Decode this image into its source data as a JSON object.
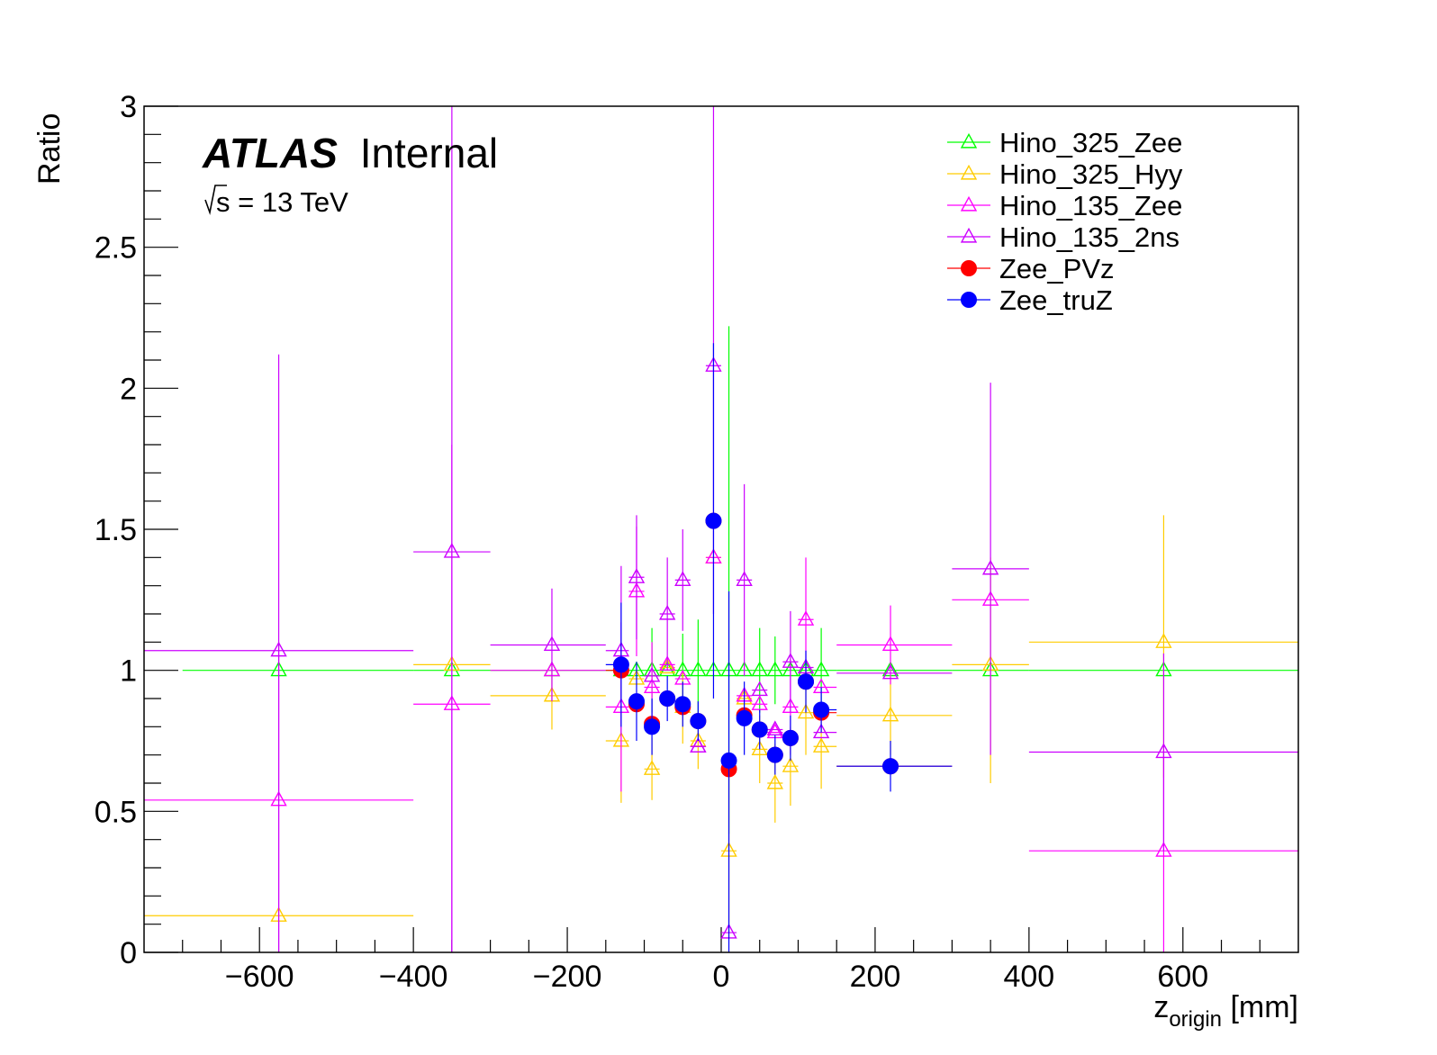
{
  "chart_data": {
    "type": "scatter",
    "title": "",
    "annotations": {
      "experiment": "ATLAS",
      "status": "Internal",
      "energy_sqrt": "s",
      "energy_value": " = 13 TeV"
    },
    "xlabel": {
      "main": "z",
      "sub": "origin",
      "unit": " [mm]"
    },
    "ylabel": "Ratio",
    "xlim": [
      -750,
      750
    ],
    "ylim": [
      0,
      3
    ],
    "xticks": [
      -600,
      -400,
      -200,
      0,
      200,
      400,
      600
    ],
    "xtick_labels": [
      "−600",
      "−400",
      "−200",
      "0",
      "200",
      "400",
      "600"
    ],
    "yticks": [
      0,
      0.5,
      1,
      1.5,
      2,
      2.5,
      3
    ],
    "ytick_labels": [
      "0",
      "0.5",
      "1",
      "1.5",
      "2",
      "2.5",
      "3"
    ],
    "grid": false,
    "legend_position": "top-right",
    "series": [
      {
        "name": "Hino_325_Zee",
        "color": "#00ff00",
        "marker": "open-triangle",
        "points": [
          {
            "x": -575,
            "y": 1.0,
            "xlo": -700,
            "xhi": -400
          },
          {
            "x": -350,
            "y": 1.0,
            "xlo": -400,
            "xhi": -300
          },
          {
            "x": -220,
            "y": 1.0,
            "xlo": -300,
            "xhi": -150
          },
          {
            "x": -130,
            "y": 1.0,
            "xlo": -150,
            "xhi": -120
          },
          {
            "x": -110,
            "y": 1.0,
            "xlo": -120,
            "xhi": -100
          },
          {
            "x": -90,
            "y": 1.0,
            "xlo": -100,
            "xhi": -80,
            "ylo": 0.85,
            "yhi": 1.15
          },
          {
            "x": -70,
            "y": 1.0,
            "xlo": -80,
            "xhi": -60
          },
          {
            "x": -50,
            "y": 1.0,
            "xlo": -60,
            "xhi": -40,
            "ylo": 0.87,
            "yhi": 1.13
          },
          {
            "x": -30,
            "y": 1.0,
            "xlo": -40,
            "xhi": -20,
            "ylo": 0.82,
            "yhi": 1.18
          },
          {
            "x": -10,
            "y": 1.0,
            "xlo": -20,
            "xhi": 0
          },
          {
            "x": 10,
            "y": 1.0,
            "xlo": 0,
            "xhi": 20,
            "ylo": 0.42,
            "yhi": 2.22
          },
          {
            "x": 30,
            "y": 1.0,
            "xlo": 20,
            "xhi": 40
          },
          {
            "x": 50,
            "y": 1.0,
            "xlo": 40,
            "xhi": 60,
            "ylo": 0.85,
            "yhi": 1.15
          },
          {
            "x": 70,
            "y": 1.0,
            "xlo": 60,
            "xhi": 80,
            "ylo": 0.88,
            "yhi": 1.12
          },
          {
            "x": 90,
            "y": 1.0,
            "xlo": 80,
            "xhi": 100
          },
          {
            "x": 110,
            "y": 1.0,
            "xlo": 100,
            "xhi": 120
          },
          {
            "x": 130,
            "y": 1.0,
            "xlo": 120,
            "xhi": 150,
            "ylo": 0.85,
            "yhi": 1.15
          },
          {
            "x": 220,
            "y": 1.0,
            "xlo": 150,
            "xhi": 300
          },
          {
            "x": 350,
            "y": 1.0,
            "xlo": 300,
            "xhi": 400
          },
          {
            "x": 575,
            "y": 1.0,
            "xlo": 400,
            "xhi": 750
          }
        ]
      },
      {
        "name": "Hino_325_Hyy",
        "color": "#ffcc00",
        "marker": "open-triangle",
        "points": [
          {
            "x": -575,
            "y": 0.13,
            "xlo": -750,
            "xhi": -400
          },
          {
            "x": -350,
            "y": 1.02,
            "xlo": -400,
            "xhi": -300
          },
          {
            "x": -220,
            "y": 0.91,
            "xlo": -300,
            "xhi": -150,
            "ylo": 0.79,
            "yhi": 1.03
          },
          {
            "x": -130,
            "y": 0.75,
            "xlo": -150,
            "xhi": -120,
            "ylo": 0.53,
            "yhi": 0.97
          },
          {
            "x": -110,
            "y": 0.97,
            "xlo": -120,
            "xhi": -100
          },
          {
            "x": -90,
            "y": 0.65,
            "xlo": -100,
            "xhi": -80,
            "ylo": 0.54,
            "yhi": 0.76
          },
          {
            "x": -70,
            "y": 1.01,
            "xlo": -80,
            "xhi": -60
          },
          {
            "x": -50,
            "y": 0.87,
            "xlo": -60,
            "xhi": -40,
            "ylo": 0.74,
            "yhi": 1.0
          },
          {
            "x": -30,
            "y": 0.75,
            "xlo": -40,
            "xhi": -20,
            "ylo": 0.65,
            "yhi": 0.85
          },
          {
            "x": -10,
            "y": 1.4,
            "xlo": -20,
            "xhi": 0
          },
          {
            "x": 10,
            "y": 0.36,
            "xlo": 0,
            "xhi": 20,
            "ylo": 0.05,
            "yhi": 0.7
          },
          {
            "x": 30,
            "y": 0.9,
            "xlo": 20,
            "xhi": 40
          },
          {
            "x": 50,
            "y": 0.72,
            "xlo": 40,
            "xhi": 60,
            "ylo": 0.6,
            "yhi": 0.84
          },
          {
            "x": 70,
            "y": 0.6,
            "xlo": 60,
            "xhi": 80,
            "ylo": 0.46,
            "yhi": 0.74
          },
          {
            "x": 90,
            "y": 0.66,
            "xlo": 80,
            "xhi": 100,
            "ylo": 0.52,
            "yhi": 0.8
          },
          {
            "x": 110,
            "y": 0.85,
            "xlo": 100,
            "xhi": 120,
            "ylo": 0.7,
            "yhi": 1.0
          },
          {
            "x": 130,
            "y": 0.73,
            "xlo": 120,
            "xhi": 150,
            "ylo": 0.58,
            "yhi": 0.88
          },
          {
            "x": 220,
            "y": 0.84,
            "xlo": 150,
            "xhi": 300,
            "ylo": 0.7,
            "yhi": 0.98
          },
          {
            "x": 350,
            "y": 1.02,
            "xlo": 300,
            "xhi": 400,
            "ylo": 0.6,
            "yhi": 1.4
          },
          {
            "x": 575,
            "y": 1.1,
            "xlo": 400,
            "xhi": 750,
            "ylo": 0.62,
            "yhi": 1.55
          }
        ]
      },
      {
        "name": "Hino_135_Zee",
        "color": "#ff00ff",
        "marker": "open-triangle",
        "points": [
          {
            "x": -575,
            "y": 0.54,
            "xlo": -750,
            "xhi": -400,
            "ylo": 0.0,
            "yhi": 1.1
          },
          {
            "x": -350,
            "y": 0.88,
            "xlo": -400,
            "xhi": -300,
            "ylo": 0.0,
            "yhi": 1.8
          },
          {
            "x": -220,
            "y": 1.0,
            "xlo": -300,
            "xhi": -150
          },
          {
            "x": -130,
            "y": 0.87,
            "xlo": -150,
            "xhi": -120,
            "ylo": 0.57,
            "yhi": 1.17
          },
          {
            "x": -110,
            "y": 1.28,
            "xlo": -120,
            "xhi": -100,
            "ylo": 1.05,
            "yhi": 1.51
          },
          {
            "x": -90,
            "y": 0.94,
            "xlo": -100,
            "xhi": -80,
            "ylo": 0.78,
            "yhi": 1.1
          },
          {
            "x": -70,
            "y": 1.02,
            "xlo": -80,
            "xhi": -60
          },
          {
            "x": -50,
            "y": 0.97,
            "xlo": -60,
            "xhi": -40
          },
          {
            "x": -30,
            "y": 0.73,
            "xlo": -40,
            "xhi": -20
          },
          {
            "x": -10,
            "y": 1.4,
            "xlo": -20,
            "xhi": 0
          },
          {
            "x": 30,
            "y": 0.91,
            "xlo": 20,
            "xhi": 40
          },
          {
            "x": 50,
            "y": 0.88,
            "xlo": 40,
            "xhi": 60
          },
          {
            "x": 70,
            "y": 0.78,
            "xlo": 60,
            "xhi": 80
          },
          {
            "x": 90,
            "y": 0.87,
            "xlo": 80,
            "xhi": 100,
            "ylo": 0.7,
            "yhi": 1.04
          },
          {
            "x": 110,
            "y": 1.18,
            "xlo": 100,
            "xhi": 120,
            "ylo": 0.96,
            "yhi": 1.4
          },
          {
            "x": 130,
            "y": 0.94,
            "xlo": 120,
            "xhi": 150
          },
          {
            "x": 220,
            "y": 1.09,
            "xlo": 150,
            "xhi": 300,
            "ylo": 0.95,
            "yhi": 1.23
          },
          {
            "x": 350,
            "y": 1.25,
            "xlo": 300,
            "xhi": 400
          },
          {
            "x": 575,
            "y": 0.36,
            "xlo": 400,
            "xhi": 750,
            "ylo": 0.0,
            "yhi": 0.72
          }
        ]
      },
      {
        "name": "Hino_135_2ns",
        "color": "#cc00ff",
        "marker": "open-triangle",
        "points": [
          {
            "x": -575,
            "y": 1.07,
            "xlo": -750,
            "xhi": -400,
            "ylo": 0.0,
            "yhi": 2.12
          },
          {
            "x": -350,
            "y": 1.42,
            "xlo": -400,
            "xhi": -300,
            "ylo": 0.0,
            "yhi": 3.0
          },
          {
            "x": -220,
            "y": 1.09,
            "xlo": -300,
            "xhi": -150,
            "ylo": 0.89,
            "yhi": 1.29
          },
          {
            "x": -130,
            "y": 1.07,
            "xlo": -150,
            "xhi": -120,
            "ylo": 0.77,
            "yhi": 1.37
          },
          {
            "x": -110,
            "y": 1.33,
            "xlo": -120,
            "xhi": -100,
            "ylo": 1.11,
            "yhi": 1.55
          },
          {
            "x": -90,
            "y": 0.98,
            "xlo": -100,
            "xhi": -80
          },
          {
            "x": -70,
            "y": 1.2,
            "xlo": -80,
            "xhi": -60,
            "ylo": 1.0,
            "yhi": 1.4
          },
          {
            "x": -50,
            "y": 1.32,
            "xlo": -60,
            "xhi": -40,
            "ylo": 1.14,
            "yhi": 1.5
          },
          {
            "x": -30,
            "y": 0.73,
            "xlo": -40,
            "xhi": -20
          },
          {
            "x": -10,
            "y": 2.08,
            "xlo": -20,
            "xhi": 0,
            "ylo": 1.2,
            "yhi": 3.0
          },
          {
            "x": 10,
            "y": 0.07,
            "xlo": 0,
            "xhi": 20
          },
          {
            "x": 30,
            "y": 1.32,
            "xlo": 20,
            "xhi": 40,
            "ylo": 0.98,
            "yhi": 1.66
          },
          {
            "x": 50,
            "y": 0.93,
            "xlo": 40,
            "xhi": 60
          },
          {
            "x": 70,
            "y": 0.79,
            "xlo": 60,
            "xhi": 80
          },
          {
            "x": 90,
            "y": 1.03,
            "xlo": 80,
            "xhi": 100,
            "ylo": 0.85,
            "yhi": 1.21
          },
          {
            "x": 110,
            "y": 1.01,
            "xlo": 100,
            "xhi": 120
          },
          {
            "x": 130,
            "y": 0.78,
            "xlo": 120,
            "xhi": 150
          },
          {
            "x": 220,
            "y": 0.99,
            "xlo": 150,
            "xhi": 300
          },
          {
            "x": 350,
            "y": 1.36,
            "xlo": 300,
            "xhi": 400,
            "ylo": 0.7,
            "yhi": 2.02
          },
          {
            "x": 575,
            "y": 0.71,
            "xlo": 400,
            "xhi": 750,
            "ylo": 0.36,
            "yhi": 1.06
          }
        ]
      },
      {
        "name": "Zee_PVz",
        "color": "#ff0000",
        "marker": "filled-circle",
        "points": [
          {
            "x": -130,
            "y": 1.0,
            "xlo": -150,
            "xhi": -120
          },
          {
            "x": -110,
            "y": 0.88,
            "xlo": -120,
            "xhi": -100
          },
          {
            "x": -90,
            "y": 0.81,
            "xlo": -100,
            "xhi": -80
          },
          {
            "x": -70,
            "y": 0.9,
            "xlo": -80,
            "xhi": -60
          },
          {
            "x": -50,
            "y": 0.87,
            "xlo": -60,
            "xhi": -40
          },
          {
            "x": -30,
            "y": 0.82,
            "xlo": -40,
            "xhi": -20
          },
          {
            "x": -10,
            "y": 1.53,
            "xlo": -20,
            "xhi": 0
          },
          {
            "x": 10,
            "y": 0.65,
            "xlo": 0,
            "xhi": 20
          },
          {
            "x": 30,
            "y": 0.84,
            "xlo": 20,
            "xhi": 40
          },
          {
            "x": 50,
            "y": 0.79,
            "xlo": 40,
            "xhi": 60
          },
          {
            "x": 70,
            "y": 0.7,
            "xlo": 60,
            "xhi": 80
          },
          {
            "x": 90,
            "y": 0.76,
            "xlo": 80,
            "xhi": 100
          },
          {
            "x": 110,
            "y": 0.96,
            "xlo": 100,
            "xhi": 120
          },
          {
            "x": 130,
            "y": 0.85,
            "xlo": 120,
            "xhi": 150
          },
          {
            "x": 220,
            "y": 0.66,
            "xlo": 150,
            "xhi": 300
          }
        ]
      },
      {
        "name": "Zee_truZ",
        "color": "#0000ff",
        "marker": "filled-circle",
        "points": [
          {
            "x": -130,
            "y": 1.02,
            "xlo": -150,
            "xhi": -120,
            "ylo": 0.8,
            "yhi": 1.24
          },
          {
            "x": -110,
            "y": 0.89,
            "xlo": -120,
            "xhi": -100,
            "ylo": 0.75,
            "yhi": 1.03
          },
          {
            "x": -90,
            "y": 0.8,
            "xlo": -100,
            "xhi": -80,
            "ylo": 0.7,
            "yhi": 0.9
          },
          {
            "x": -70,
            "y": 0.9,
            "xlo": -80,
            "xhi": -60,
            "ylo": 0.82,
            "yhi": 0.98
          },
          {
            "x": -50,
            "y": 0.88,
            "xlo": -60,
            "xhi": -40,
            "ylo": 0.8,
            "yhi": 0.96
          },
          {
            "x": -30,
            "y": 0.82,
            "xlo": -40,
            "xhi": -20,
            "ylo": 0.75,
            "yhi": 0.89
          },
          {
            "x": -10,
            "y": 1.53,
            "xlo": -20,
            "xhi": 0,
            "ylo": 0.9,
            "yhi": 2.16
          },
          {
            "x": 10,
            "y": 0.68,
            "xlo": 0,
            "xhi": 20,
            "ylo": 0.0,
            "yhi": 1.28
          },
          {
            "x": 30,
            "y": 0.83,
            "xlo": 20,
            "xhi": 40,
            "ylo": 0.7,
            "yhi": 0.96
          },
          {
            "x": 50,
            "y": 0.79,
            "xlo": 40,
            "xhi": 60,
            "ylo": 0.72,
            "yhi": 0.86
          },
          {
            "x": 70,
            "y": 0.7,
            "xlo": 60,
            "xhi": 80,
            "ylo": 0.63,
            "yhi": 0.77
          },
          {
            "x": 90,
            "y": 0.76,
            "xlo": 80,
            "xhi": 100,
            "ylo": 0.68,
            "yhi": 0.84
          },
          {
            "x": 110,
            "y": 0.96,
            "xlo": 100,
            "xhi": 120,
            "ylo": 0.85,
            "yhi": 1.07
          },
          {
            "x": 130,
            "y": 0.86,
            "xlo": 120,
            "xhi": 150,
            "ylo": 0.78,
            "yhi": 0.94
          },
          {
            "x": 220,
            "y": 0.66,
            "xlo": 150,
            "xhi": 300,
            "ylo": 0.57,
            "yhi": 0.75
          }
        ]
      }
    ]
  }
}
